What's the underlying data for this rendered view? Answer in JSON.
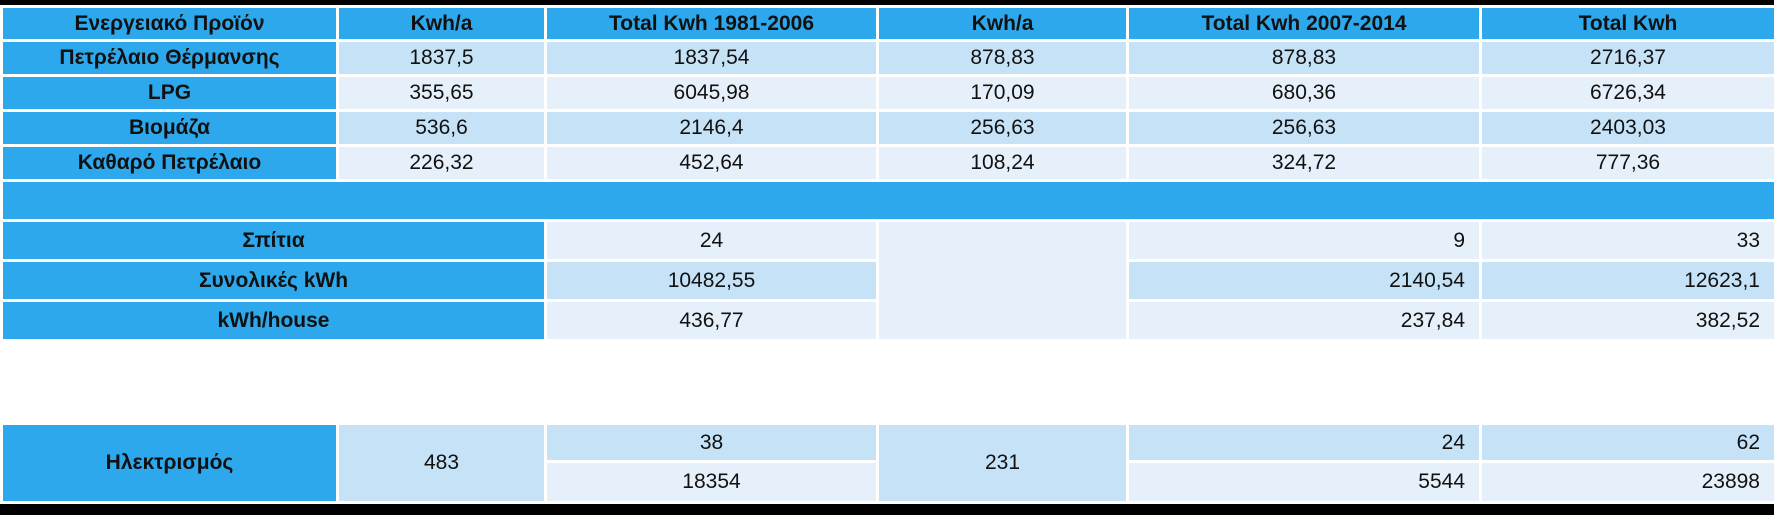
{
  "headers": [
    "Ενεργειακό Προϊόν",
    "Kwh/a",
    "Total Kwh 1981-2006",
    "Kwh/a",
    "Total Kwh 2007-2014",
    "Total Kwh"
  ],
  "products": [
    {
      "name": "Πετρέλαιο Θέρμανσης",
      "kwh_a_1": "1837,5",
      "total_1981_2006": "1837,54",
      "kwh_a_2": "878,83",
      "total_2007_2014": "878,83",
      "total": "2716,37"
    },
    {
      "name": "LPG",
      "kwh_a_1": "355,65",
      "total_1981_2006": "6045,98",
      "kwh_a_2": "170,09",
      "total_2007_2014": "680,36",
      "total": "6726,34"
    },
    {
      "name": "Βιομάζα",
      "kwh_a_1": "536,6",
      "total_1981_2006": "2146,4",
      "kwh_a_2": "256,63",
      "total_2007_2014": "256,63",
      "total": "2403,03"
    },
    {
      "name": "Καθαρό Πετρέλαιο",
      "kwh_a_1": "226,32",
      "total_1981_2006": "452,64",
      "kwh_a_2": "108,24",
      "total_2007_2014": "324,72",
      "total": "777,36"
    }
  ],
  "summary": [
    {
      "label": "Σπίτια",
      "total_1981_2006": "24",
      "total_2007_2014": "9",
      "total": "33"
    },
    {
      "label": "Συνολικές kWh",
      "total_1981_2006": "10482,55",
      "total_2007_2014": "2140,54",
      "total": "12623,1"
    },
    {
      "label": "kWh/house",
      "total_1981_2006": "436,77",
      "total_2007_2014": "237,84",
      "total": "382,52"
    }
  ],
  "electricity": {
    "label": "Ηλεκτρισμός",
    "kwh_a_1": "483",
    "kwh_a_2": "231",
    "houses_1981_2006": "38",
    "kwh_1981_2006": "18354",
    "houses_2007_2014": "24",
    "kwh_2007_2014": "5544",
    "houses_total": "62",
    "kwh_total": "23898"
  }
}
